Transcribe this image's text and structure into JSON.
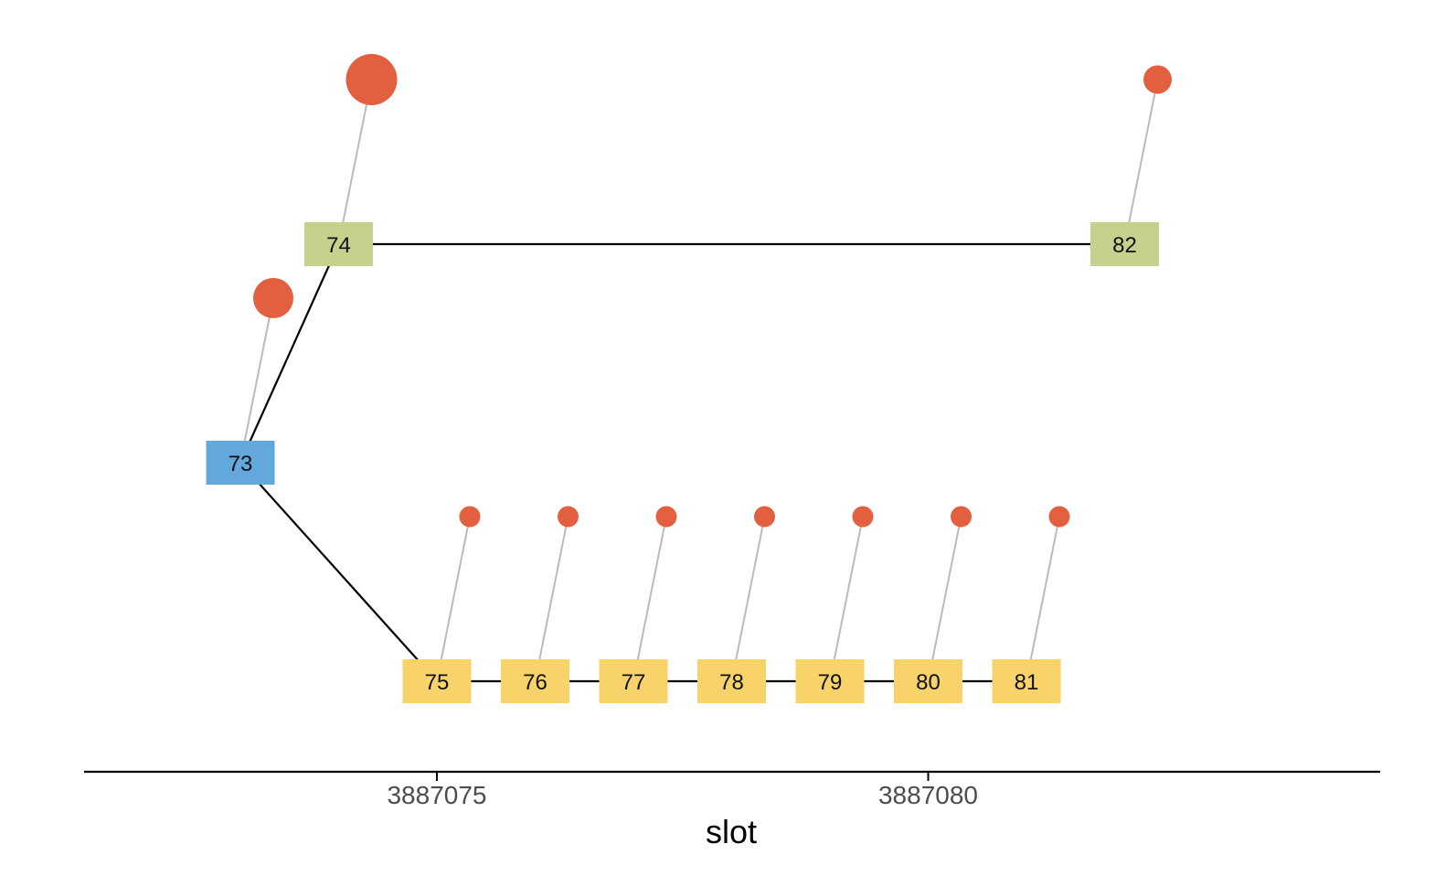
{
  "chart_data": {
    "type": "diagram",
    "xlabel": "slot",
    "x_ticks": [
      {
        "value": 3887075,
        "label": "3887075"
      },
      {
        "value": 3887080,
        "label": "3887080"
      }
    ],
    "colors": {
      "root": "#62a8dc",
      "branch_upper": "#c4d28d",
      "branch_lower": "#f7d36a",
      "dot": "#e2603f",
      "edge": "#000000",
      "stem": "#bbbbbb",
      "axis": "#000000"
    },
    "nodes": [
      {
        "id": "73",
        "label": "73",
        "slot": 3887073,
        "branch": "root"
      },
      {
        "id": "74",
        "label": "74",
        "slot": 3887074,
        "branch": "branch_upper"
      },
      {
        "id": "82",
        "label": "82",
        "slot": 3887082,
        "branch": "branch_upper"
      },
      {
        "id": "75",
        "label": "75",
        "slot": 3887075,
        "branch": "branch_lower"
      },
      {
        "id": "76",
        "label": "76",
        "slot": 3887076,
        "branch": "branch_lower"
      },
      {
        "id": "77",
        "label": "77",
        "slot": 3887077,
        "branch": "branch_lower"
      },
      {
        "id": "78",
        "label": "78",
        "slot": 3887078,
        "branch": "branch_lower"
      },
      {
        "id": "79",
        "label": "79",
        "slot": 3887079,
        "branch": "branch_lower"
      },
      {
        "id": "80",
        "label": "80",
        "slot": 3887080,
        "branch": "branch_lower"
      },
      {
        "id": "81",
        "label": "81",
        "slot": 3887081,
        "branch": "branch_lower"
      }
    ],
    "edges": [
      [
        "73",
        "74"
      ],
      [
        "74",
        "82"
      ],
      [
        "73",
        "75"
      ],
      [
        "75",
        "76"
      ],
      [
        "76",
        "77"
      ],
      [
        "77",
        "78"
      ],
      [
        "78",
        "79"
      ],
      [
        "79",
        "80"
      ],
      [
        "80",
        "81"
      ]
    ],
    "dots": [
      {
        "node": "74",
        "size": "large"
      },
      {
        "node": "73",
        "size": "medium"
      },
      {
        "node": "82",
        "size": "small"
      },
      {
        "node": "75",
        "size": "tiny"
      },
      {
        "node": "76",
        "size": "tiny"
      },
      {
        "node": "77",
        "size": "tiny"
      },
      {
        "node": "78",
        "size": "tiny"
      },
      {
        "node": "79",
        "size": "tiny"
      },
      {
        "node": "80",
        "size": "tiny"
      },
      {
        "node": "81",
        "size": "tiny"
      }
    ]
  }
}
